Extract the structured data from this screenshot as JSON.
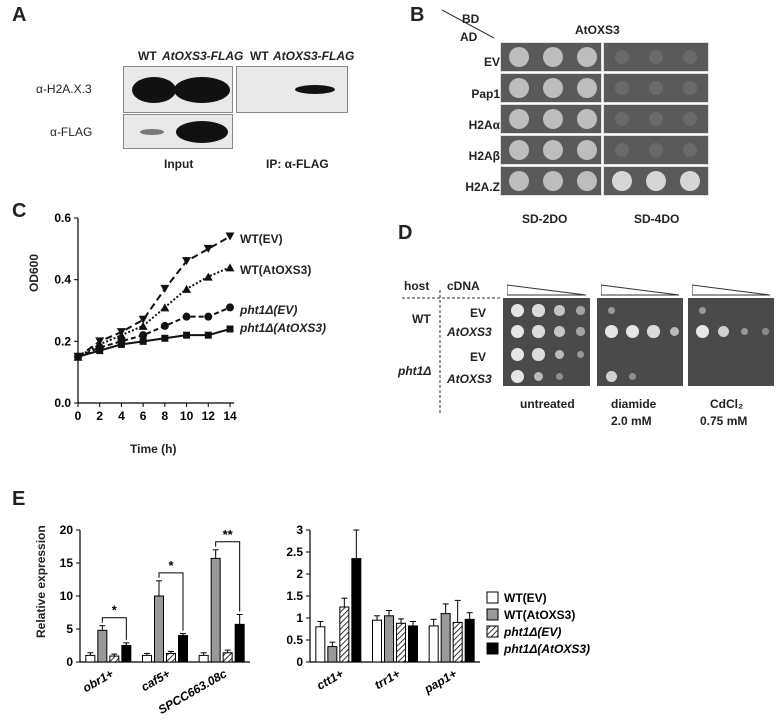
{
  "panels": {
    "A": "A",
    "B": "B",
    "C": "C",
    "D": "D",
    "E": "E"
  },
  "panelA": {
    "lane_labels": [
      "WT",
      "AtOXS3-FLAG",
      "WT",
      "AtOXS3-FLAG"
    ],
    "row_labels": [
      "α-H2A.X.3",
      "α-FLAG"
    ],
    "input_label": "Input",
    "ip_label": "IP: α-FLAG"
  },
  "panelB": {
    "bd_label": "BD",
    "ad_label": "AD",
    "bd_construct": "AtOXS3",
    "rows": [
      "EV",
      "Pap1",
      "H2Aα",
      "H2Aβ",
      "H2A.Z"
    ],
    "media": [
      "SD-2DO",
      "SD-4DO"
    ],
    "colors": {
      "plate": "#5a5a5a",
      "colony": "#c8c8c8"
    }
  },
  "panelD": {
    "host_label": "host",
    "cdna_label": "cDNA",
    "hosts": [
      "WT",
      "pht1Δ"
    ],
    "cdnas": [
      "EV",
      "AtOXS3",
      "EV",
      "AtOXS3"
    ],
    "conditions": [
      {
        "name": "untreated",
        "sub": ""
      },
      {
        "name": "diamide",
        "sub": "2.0 mM"
      },
      {
        "name": "CdCl₂",
        "sub": "0.75 mM"
      }
    ]
  },
  "chart_data": [
    {
      "type": "line",
      "xlabel": "Time (h)",
      "ylabel": "OD600",
      "x": [
        0,
        2,
        4,
        6,
        8,
        10,
        12,
        14
      ],
      "xlim": [
        0,
        14
      ],
      "ylim": [
        0,
        0.6
      ],
      "yticks": [
        "0.0",
        "0.2",
        "0.4",
        "0.6"
      ],
      "series": [
        {
          "name": "WT(EV)",
          "values": [
            0.15,
            0.2,
            0.23,
            0.27,
            0.37,
            0.46,
            0.5,
            0.54
          ]
        },
        {
          "name": "WT(AtOXS3)",
          "values": [
            0.15,
            0.19,
            0.22,
            0.25,
            0.31,
            0.37,
            0.41,
            0.44
          ]
        },
        {
          "name": "pht1Δ(EV)",
          "values": [
            0.15,
            0.18,
            0.2,
            0.22,
            0.25,
            0.28,
            0.28,
            0.31
          ]
        },
        {
          "name": "pht1Δ(AtOXS3)",
          "values": [
            0.15,
            0.17,
            0.19,
            0.2,
            0.21,
            0.22,
            0.22,
            0.24
          ]
        }
      ]
    },
    {
      "type": "bar",
      "ylabel": "Relative expression",
      "categories": [
        "obr1+",
        "caf5+",
        "SPCC663.08c"
      ],
      "ylim": [
        0,
        20
      ],
      "yticks": [
        "0",
        "5",
        "10",
        "15",
        "20"
      ],
      "series": [
        {
          "name": "WT(EV)",
          "values": [
            1,
            1,
            1
          ]
        },
        {
          "name": "WT(AtOXS3)",
          "values": [
            4.8,
            10,
            15.7
          ]
        },
        {
          "name": "pht1Δ(EV)",
          "values": [
            0.9,
            1.3,
            1.4
          ]
        },
        {
          "name": "pht1Δ(AtOXS3)",
          "values": [
            2.5,
            4,
            5.7
          ]
        }
      ],
      "errors": [
        [
          0.4,
          0.3,
          0.4
        ],
        [
          0.7,
          2.3,
          1.3
        ],
        [
          0.3,
          0.3,
          0.4
        ],
        [
          0.4,
          0.3,
          1.5
        ]
      ],
      "significance": [
        "*",
        "*",
        "**"
      ]
    },
    {
      "type": "bar",
      "categories": [
        "ctt1+",
        "trr1+",
        "pap1+"
      ],
      "ylim": [
        0,
        3
      ],
      "yticks": [
        "0",
        "0.5",
        "1",
        "1.5",
        "2",
        "2.5",
        "3"
      ],
      "series": [
        {
          "name": "WT(EV)",
          "values": [
            0.8,
            0.95,
            0.82
          ]
        },
        {
          "name": "WT(AtOXS3)",
          "values": [
            0.35,
            1.05,
            1.1
          ]
        },
        {
          "name": "pht1Δ(EV)",
          "values": [
            1.25,
            0.88,
            0.9
          ]
        },
        {
          "name": "pht1Δ(AtOXS3)",
          "values": [
            2.35,
            0.82,
            0.97
          ]
        }
      ],
      "errors": [
        [
          0.12,
          0.1,
          0.15
        ],
        [
          0.1,
          0.12,
          0.22
        ],
        [
          0.2,
          0.1,
          0.5
        ],
        [
          0.65,
          0.1,
          0.15
        ]
      ]
    }
  ],
  "legend": [
    {
      "name": "WT(EV)",
      "fill": "#ffffff"
    },
    {
      "name": "WT(AtOXS3)",
      "fill": "#999999"
    },
    {
      "name": "pht1Δ(EV)",
      "fill": "hatch"
    },
    {
      "name": "pht1Δ(AtOXS3)",
      "fill": "#000000"
    }
  ]
}
